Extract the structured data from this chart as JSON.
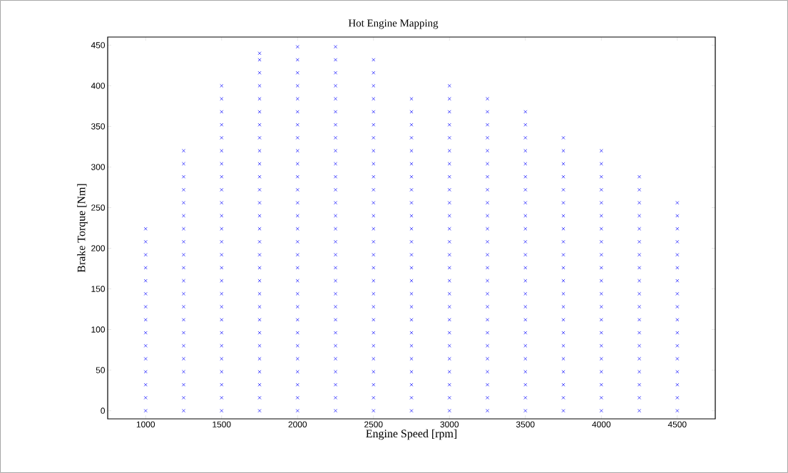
{
  "chart_data": {
    "type": "scatter",
    "title": "Hot Engine Mapping",
    "xlabel": "Engine Speed [rpm]",
    "ylabel": "Brake Torque [Nm]",
    "xlim": [
      750,
      4750
    ],
    "ylim": [
      -10,
      460
    ],
    "xticks": [
      1000,
      1500,
      2000,
      2500,
      3000,
      3500,
      4000,
      4500
    ],
    "yticks": [
      0,
      50,
      100,
      150,
      200,
      250,
      300,
      350,
      400,
      450
    ],
    "marker": "cross",
    "grid": false,
    "series": [
      {
        "color": "#0000ff",
        "x": [
          1000,
          1000,
          1000,
          1000,
          1000,
          1000,
          1000,
          1000,
          1000,
          1000,
          1000,
          1000,
          1000,
          1000,
          1000
        ],
        "values": [
          0,
          16,
          32,
          48,
          64,
          80,
          96,
          112,
          128,
          144,
          160,
          176,
          192,
          208,
          224
        ]
      },
      {
        "color": "#0000ff",
        "x": [
          1250,
          1250,
          1250,
          1250,
          1250,
          1250,
          1250,
          1250,
          1250,
          1250,
          1250,
          1250,
          1250,
          1250,
          1250,
          1250,
          1250,
          1250,
          1250,
          1250,
          1250
        ],
        "values": [
          0,
          16,
          32,
          48,
          64,
          80,
          96,
          112,
          128,
          144,
          160,
          176,
          192,
          208,
          224,
          240,
          256,
          272,
          288,
          304,
          320
        ]
      },
      {
        "color": "#0000ff",
        "x": [
          1500,
          1500,
          1500,
          1500,
          1500,
          1500,
          1500,
          1500,
          1500,
          1500,
          1500,
          1500,
          1500,
          1500,
          1500,
          1500,
          1500,
          1500,
          1500,
          1500,
          1500,
          1500,
          1500,
          1500,
          1500,
          1500
        ],
        "values": [
          0,
          16,
          32,
          48,
          64,
          80,
          96,
          112,
          128,
          144,
          160,
          176,
          192,
          208,
          224,
          240,
          256,
          272,
          288,
          304,
          320,
          336,
          352,
          368,
          384,
          400
        ]
      },
      {
        "color": "#0000ff",
        "x": [
          1750,
          1750,
          1750,
          1750,
          1750,
          1750,
          1750,
          1750,
          1750,
          1750,
          1750,
          1750,
          1750,
          1750,
          1750,
          1750,
          1750,
          1750,
          1750,
          1750,
          1750,
          1750,
          1750,
          1750,
          1750,
          1750,
          1750,
          1750,
          1750
        ],
        "values": [
          0,
          16,
          32,
          48,
          64,
          80,
          96,
          112,
          128,
          144,
          160,
          176,
          192,
          208,
          224,
          240,
          256,
          272,
          288,
          304,
          320,
          336,
          352,
          368,
          384,
          400,
          416,
          432,
          440
        ]
      },
      {
        "color": "#0000ff",
        "x": [
          2000,
          2000,
          2000,
          2000,
          2000,
          2000,
          2000,
          2000,
          2000,
          2000,
          2000,
          2000,
          2000,
          2000,
          2000,
          2000,
          2000,
          2000,
          2000,
          2000,
          2000,
          2000,
          2000,
          2000,
          2000,
          2000,
          2000,
          2000,
          2000
        ],
        "values": [
          0,
          16,
          32,
          48,
          64,
          80,
          96,
          112,
          128,
          144,
          160,
          176,
          192,
          208,
          224,
          240,
          256,
          272,
          288,
          304,
          320,
          336,
          352,
          368,
          384,
          400,
          416,
          432,
          448
        ]
      },
      {
        "color": "#0000ff",
        "x": [
          2250,
          2250,
          2250,
          2250,
          2250,
          2250,
          2250,
          2250,
          2250,
          2250,
          2250,
          2250,
          2250,
          2250,
          2250,
          2250,
          2250,
          2250,
          2250,
          2250,
          2250,
          2250,
          2250,
          2250,
          2250,
          2250,
          2250,
          2250,
          2250
        ],
        "values": [
          0,
          16,
          32,
          48,
          64,
          80,
          96,
          112,
          128,
          144,
          160,
          176,
          192,
          208,
          224,
          240,
          256,
          272,
          288,
          304,
          320,
          336,
          352,
          368,
          384,
          400,
          416,
          432,
          448
        ]
      },
      {
        "color": "#0000ff",
        "x": [
          2500,
          2500,
          2500,
          2500,
          2500,
          2500,
          2500,
          2500,
          2500,
          2500,
          2500,
          2500,
          2500,
          2500,
          2500,
          2500,
          2500,
          2500,
          2500,
          2500,
          2500,
          2500,
          2500,
          2500,
          2500,
          2500,
          2500,
          2500
        ],
        "values": [
          0,
          16,
          32,
          48,
          64,
          80,
          96,
          112,
          128,
          144,
          160,
          176,
          192,
          208,
          224,
          240,
          256,
          272,
          288,
          304,
          320,
          336,
          352,
          368,
          384,
          400,
          416,
          432
        ]
      },
      {
        "color": "#0000ff",
        "x": [
          2750,
          2750,
          2750,
          2750,
          2750,
          2750,
          2750,
          2750,
          2750,
          2750,
          2750,
          2750,
          2750,
          2750,
          2750,
          2750,
          2750,
          2750,
          2750,
          2750,
          2750,
          2750,
          2750,
          2750,
          2750
        ],
        "values": [
          0,
          16,
          32,
          48,
          64,
          80,
          96,
          112,
          128,
          144,
          160,
          176,
          192,
          208,
          224,
          240,
          256,
          272,
          288,
          304,
          320,
          336,
          352,
          368,
          384
        ]
      },
      {
        "color": "#0000ff",
        "x": [
          3000,
          3000,
          3000,
          3000,
          3000,
          3000,
          3000,
          3000,
          3000,
          3000,
          3000,
          3000,
          3000,
          3000,
          3000,
          3000,
          3000,
          3000,
          3000,
          3000,
          3000,
          3000,
          3000,
          3000,
          3000,
          3000
        ],
        "values": [
          0,
          16,
          32,
          48,
          64,
          80,
          96,
          112,
          128,
          144,
          160,
          176,
          192,
          208,
          224,
          240,
          256,
          272,
          288,
          304,
          320,
          336,
          352,
          368,
          384,
          400
        ]
      },
      {
        "color": "#0000ff",
        "x": [
          3250,
          3250,
          3250,
          3250,
          3250,
          3250,
          3250,
          3250,
          3250,
          3250,
          3250,
          3250,
          3250,
          3250,
          3250,
          3250,
          3250,
          3250,
          3250,
          3250,
          3250,
          3250,
          3250,
          3250,
          3250
        ],
        "values": [
          0,
          16,
          32,
          48,
          64,
          80,
          96,
          112,
          128,
          144,
          160,
          176,
          192,
          208,
          224,
          240,
          256,
          272,
          288,
          304,
          320,
          336,
          352,
          368,
          384
        ]
      },
      {
        "color": "#0000ff",
        "x": [
          3500,
          3500,
          3500,
          3500,
          3500,
          3500,
          3500,
          3500,
          3500,
          3500,
          3500,
          3500,
          3500,
          3500,
          3500,
          3500,
          3500,
          3500,
          3500,
          3500,
          3500,
          3500,
          3500,
          3500
        ],
        "values": [
          0,
          16,
          32,
          48,
          64,
          80,
          96,
          112,
          128,
          144,
          160,
          176,
          192,
          208,
          224,
          240,
          256,
          272,
          288,
          304,
          320,
          336,
          352,
          368
        ]
      },
      {
        "color": "#0000ff",
        "x": [
          3750,
          3750,
          3750,
          3750,
          3750,
          3750,
          3750,
          3750,
          3750,
          3750,
          3750,
          3750,
          3750,
          3750,
          3750,
          3750,
          3750,
          3750,
          3750,
          3750,
          3750,
          3750
        ],
        "values": [
          0,
          16,
          32,
          48,
          64,
          80,
          96,
          112,
          128,
          144,
          160,
          176,
          192,
          208,
          224,
          240,
          256,
          272,
          288,
          304,
          320,
          336
        ]
      },
      {
        "color": "#0000ff",
        "x": [
          4000,
          4000,
          4000,
          4000,
          4000,
          4000,
          4000,
          4000,
          4000,
          4000,
          4000,
          4000,
          4000,
          4000,
          4000,
          4000,
          4000,
          4000,
          4000,
          4000,
          4000
        ],
        "values": [
          0,
          16,
          32,
          48,
          64,
          80,
          96,
          112,
          128,
          144,
          160,
          176,
          192,
          208,
          224,
          240,
          256,
          272,
          288,
          304,
          320
        ]
      },
      {
        "color": "#0000ff",
        "x": [
          4250,
          4250,
          4250,
          4250,
          4250,
          4250,
          4250,
          4250,
          4250,
          4250,
          4250,
          4250,
          4250,
          4250,
          4250,
          4250,
          4250,
          4250,
          4250
        ],
        "values": [
          0,
          16,
          32,
          48,
          64,
          80,
          96,
          112,
          128,
          144,
          160,
          176,
          192,
          208,
          224,
          240,
          256,
          272,
          288
        ]
      },
      {
        "color": "#0000ff",
        "x": [
          4500,
          4500,
          4500,
          4500,
          4500,
          4500,
          4500,
          4500,
          4500,
          4500,
          4500,
          4500,
          4500,
          4500,
          4500,
          4500,
          4500
        ],
        "values": [
          0,
          16,
          32,
          48,
          64,
          80,
          96,
          112,
          128,
          144,
          160,
          176,
          192,
          208,
          224,
          240,
          256
        ]
      }
    ]
  }
}
